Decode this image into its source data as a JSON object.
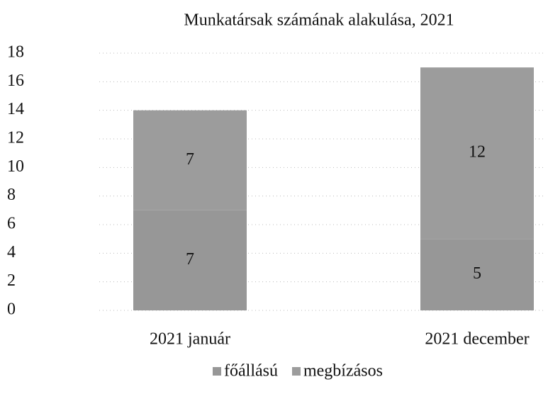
{
  "chart_data": {
    "type": "stacked_bar",
    "title": "Munkatársak számának alakulása, 2021",
    "categories": [
      "2021 január",
      "2021 december"
    ],
    "series": [
      {
        "name": "főállású",
        "color": "#979797",
        "values": [
          7,
          5
        ]
      },
      {
        "name": "megbízásos",
        "color": "#9c9c9c",
        "values": [
          7,
          12
        ]
      }
    ],
    "ylim": [
      0,
      18
    ],
    "yticks": [
      0,
      2,
      4,
      6,
      8,
      10,
      12,
      14,
      16,
      18
    ],
    "grid": true
  }
}
